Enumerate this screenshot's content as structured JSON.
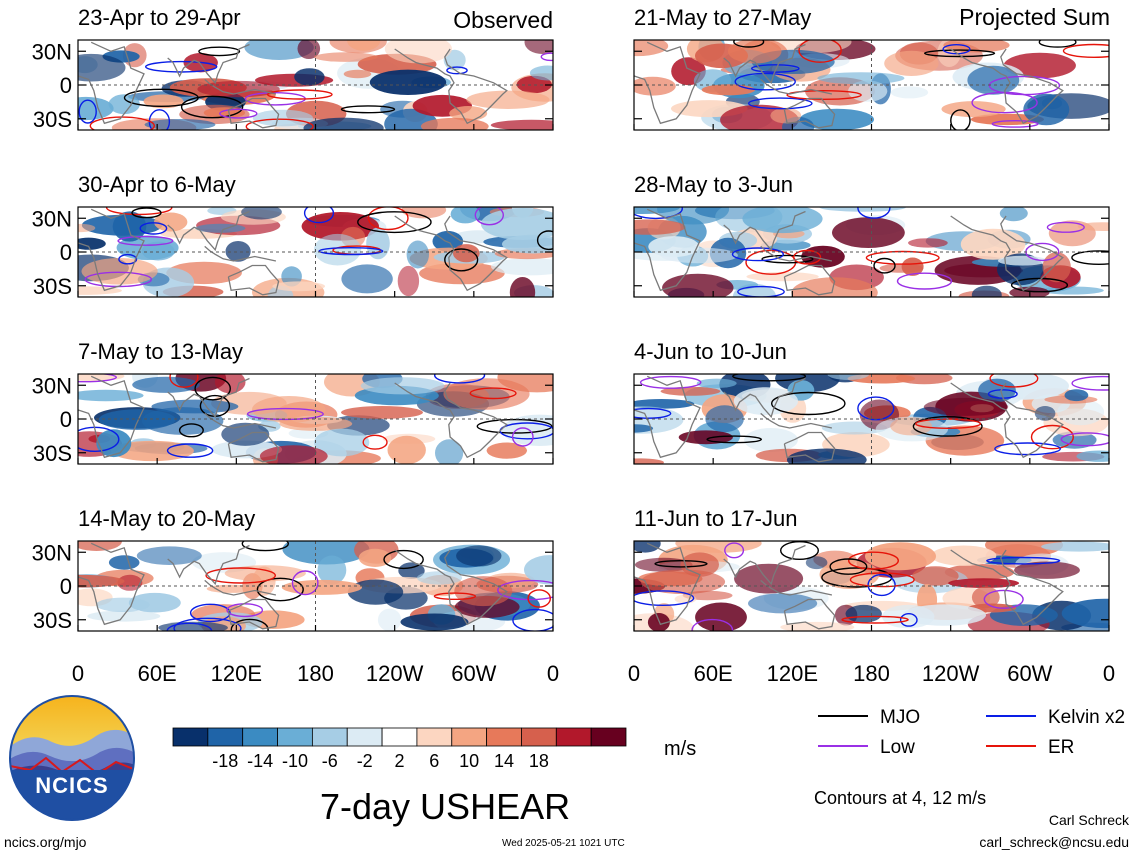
{
  "chart_data": {
    "type": "heatmap",
    "title": "7-day USHEAR",
    "units": "m/s",
    "contours_note": "Contours at 4, 12 m/s",
    "column_labels": {
      "left": "Observed",
      "right": "Projected Sum"
    },
    "panels": [
      {
        "label": "23-Apr to 29-Apr",
        "column": "left"
      },
      {
        "label": "30-Apr to 6-May",
        "column": "left"
      },
      {
        "label": "7-May to 13-May",
        "column": "left"
      },
      {
        "label": "14-May to 20-May",
        "column": "left"
      },
      {
        "label": "21-May to 27-May",
        "column": "right"
      },
      {
        "label": "28-May to 3-Jun",
        "column": "right"
      },
      {
        "label": "4-Jun to 10-Jun",
        "column": "right"
      },
      {
        "label": "11-Jun to 17-Jun",
        "column": "right"
      }
    ],
    "x_ticks": [
      {
        "lon": 0,
        "label": "0"
      },
      {
        "lon": 60,
        "label": "60E"
      },
      {
        "lon": 120,
        "label": "120E"
      },
      {
        "lon": 180,
        "label": "180"
      },
      {
        "lon": 240,
        "label": "120W"
      },
      {
        "lon": 300,
        "label": "60W"
      },
      {
        "lon": 360,
        "label": "0"
      }
    ],
    "y_ticks": [
      {
        "lat": 30,
        "label": "30N"
      },
      {
        "lat": 0,
        "label": "0"
      },
      {
        "lat": -30,
        "label": "30S"
      }
    ],
    "x_range": [
      0,
      360
    ],
    "y_range": [
      -40,
      40
    ],
    "colorbar": {
      "labels": [
        "-18",
        "-14",
        "-10",
        "-6",
        "-2",
        "2",
        "6",
        "10",
        "14",
        "18"
      ],
      "colors": [
        "#08306b",
        "#1f64a8",
        "#3b8bc2",
        "#6aaed6",
        "#a6cde5",
        "#dcebf4",
        "#ffffff",
        "#fcd6c1",
        "#f4a582",
        "#e7795a",
        "#d6604d",
        "#b2182b",
        "#67001f"
      ]
    },
    "legend": [
      {
        "label": "MJO",
        "color": "#000000"
      },
      {
        "label": "Kelvin x2",
        "color": "#0a1ee6"
      },
      {
        "label": "Low",
        "color": "#9a30e6"
      },
      {
        "label": "ER",
        "color": "#e6140a"
      }
    ]
  },
  "logo": {
    "text": "NCICS"
  },
  "footer": {
    "left": "ncics.org/mjo",
    "center": "Wed 2025-05-21 1021 UTC",
    "author": "Carl Schreck",
    "email": "carl_schreck@ncsu.edu"
  }
}
